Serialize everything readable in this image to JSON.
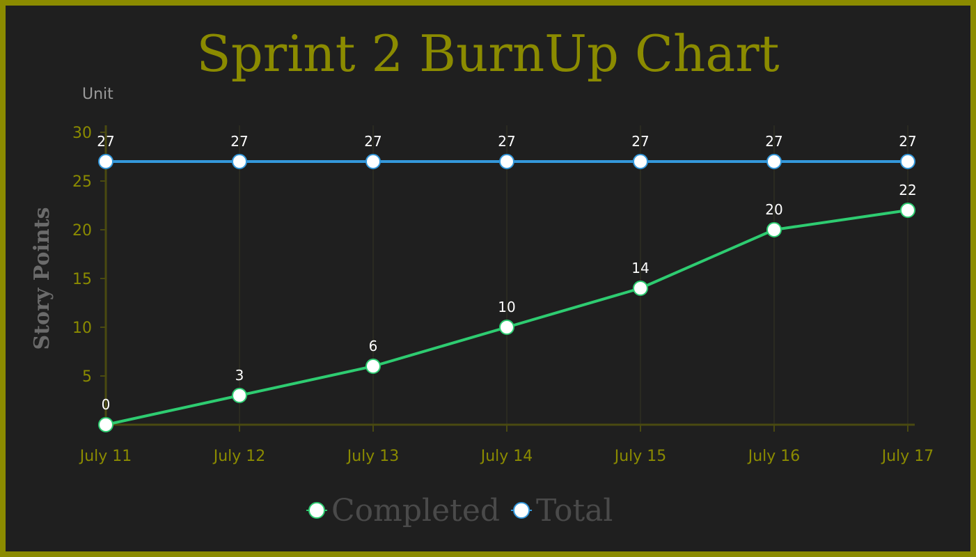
{
  "chart_data": {
    "type": "line",
    "title": "Sprint 2 BurnUp Chart",
    "xlabel": "",
    "ylabel": "Story Points",
    "unit_label": "Unit",
    "categories": [
      "July 11",
      "July 12",
      "July 13",
      "July 14",
      "July 15",
      "July 16",
      "July 17"
    ],
    "ylim": [
      0,
      30
    ],
    "yticks": [
      5,
      10,
      15,
      20,
      25,
      30
    ],
    "series": [
      {
        "name": "Completed",
        "values": [
          0,
          3,
          6,
          10,
          14,
          20,
          22
        ],
        "color": "#2ecc71"
      },
      {
        "name": "Total",
        "values": [
          27,
          27,
          27,
          27,
          27,
          27,
          27
        ],
        "color": "#3498db"
      }
    ],
    "data_labels": true,
    "grid": "vertical",
    "legend_position": "bottom",
    "colors": {
      "background": "#1f1f1f",
      "frame": "#8b8b00",
      "axis": "#4a4a10",
      "title": "#8b8b00"
    }
  }
}
